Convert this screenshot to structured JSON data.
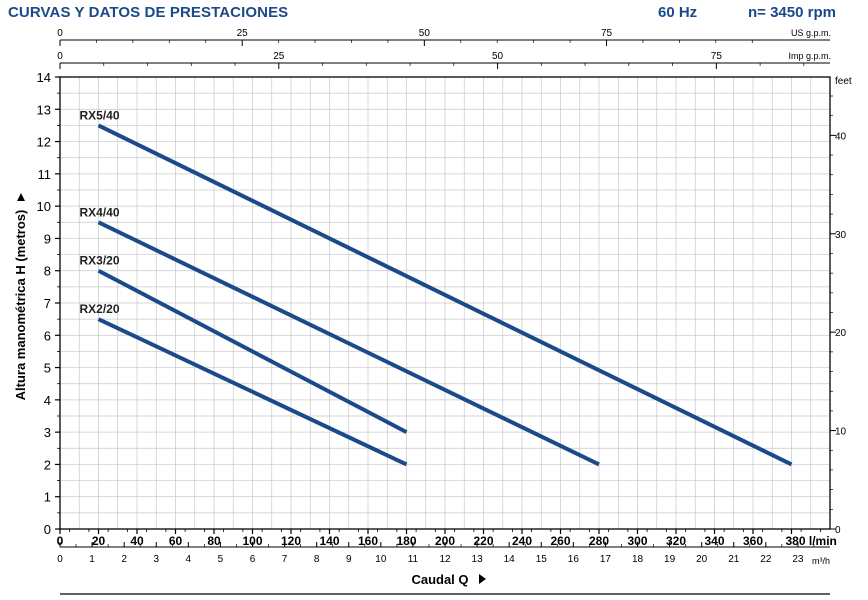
{
  "header": {
    "title": "CURVAS Y DATOS DE PRESTACIONES",
    "frequency": "60 Hz",
    "speed": "n= 3450 rpm"
  },
  "chart_data": {
    "type": "line",
    "ylabel": "Altura manométrica H (metros)",
    "xlabel": "Caudal Q",
    "x_unit": "l/min",
    "m3h_unit": "m³/h",
    "feet_unit": "feet",
    "us_gpm_unit": "US g.p.m.",
    "imp_gpm_unit": "Imp g.p.m.",
    "xlim": [
      0,
      400
    ],
    "ylim": [
      0,
      14
    ],
    "x_ticks": [
      0,
      20,
      40,
      60,
      80,
      100,
      120,
      140,
      160,
      180,
      200,
      220,
      240,
      260,
      280,
      300,
      320,
      340,
      360,
      380
    ],
    "x_tick_labels": [
      "0",
      "20",
      "40",
      "60",
      "80",
      "100",
      "120",
      "140",
      "160",
      "180",
      "200",
      "220",
      "240",
      "260",
      "280",
      "300",
      "320",
      "340",
      "360",
      "380 l/min"
    ],
    "y_ticks": [
      0,
      1,
      2,
      3,
      4,
      5,
      6,
      7,
      8,
      9,
      10,
      11,
      12,
      13,
      14
    ],
    "y_tick_labels": [
      "0",
      "1",
      "2",
      "3",
      "4",
      "5",
      "6",
      "7",
      "8",
      "9",
      "10",
      "11",
      "12",
      "13",
      "14"
    ],
    "m3h_ticks": [
      0,
      1,
      2,
      3,
      4,
      5,
      6,
      7,
      8,
      9,
      10,
      11,
      12,
      13,
      14,
      15,
      16,
      17,
      18,
      19,
      20,
      21,
      22,
      23
    ],
    "m3h_tick_labels": [
      "0",
      "1",
      "2",
      "3",
      "4",
      "5",
      "6",
      "7",
      "8",
      "9",
      "10",
      "11",
      "12",
      "13",
      "14",
      "15",
      "16",
      "17",
      "18",
      "19",
      "20",
      "21",
      "22",
      "23"
    ],
    "feet_ticks": [
      0,
      10,
      20,
      30,
      40
    ],
    "feet_tick_labels": [
      "0",
      "10",
      "20",
      "30",
      "40"
    ],
    "us_gpm_ticks": [
      0,
      25,
      50,
      75
    ],
    "us_gpm_tick_labels": [
      "0",
      "25",
      "50",
      "75"
    ],
    "imp_gpm_ticks": [
      0,
      25,
      50,
      75
    ],
    "imp_gpm_tick_labels": [
      "0",
      "25",
      "50",
      "75"
    ],
    "grid": true,
    "series": [
      {
        "name": "RX5/40",
        "x": [
          20,
          380
        ],
        "y": [
          12.5,
          2
        ]
      },
      {
        "name": "RX4/40",
        "x": [
          20,
          280
        ],
        "y": [
          9.5,
          2
        ]
      },
      {
        "name": "RX3/20",
        "x": [
          20,
          180
        ],
        "y": [
          8,
          3
        ]
      },
      {
        "name": "RX2/20",
        "x": [
          20,
          180
        ],
        "y": [
          6.5,
          2
        ]
      }
    ],
    "colors": {
      "curve": "#1b4a8a",
      "header": "#1b4a8a",
      "grid": "#c8c8c8",
      "axis": "#000000"
    }
  }
}
